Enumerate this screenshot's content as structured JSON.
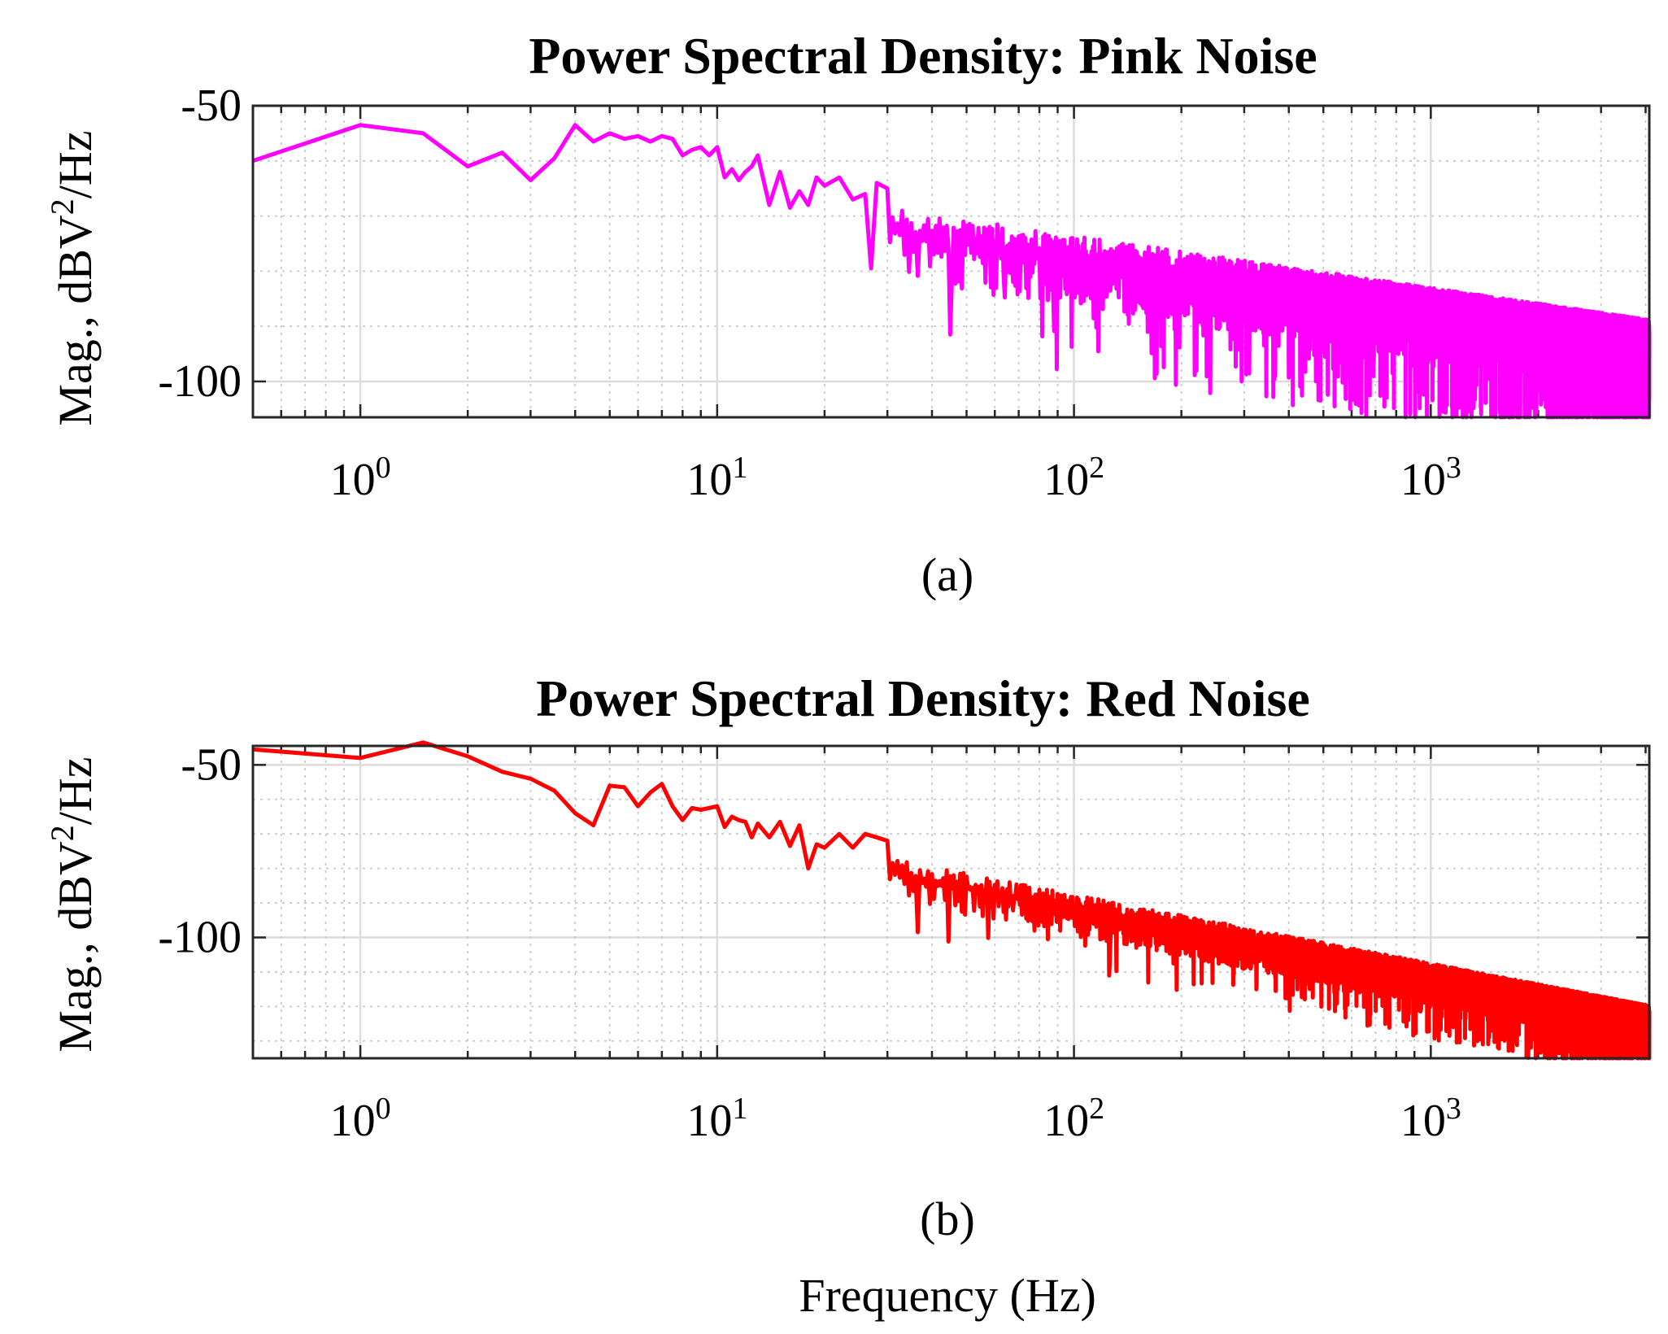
{
  "xlabel": "Frequency (Hz)",
  "chart_data": [
    {
      "type": "line",
      "title": "Power Spectral Density: Pink Noise",
      "subcaption": "(a)",
      "ylabel_prefix": "Mag., dBV",
      "ylabel_sup": "2",
      "ylabel_suffix": "/Hz",
      "xscale": "log",
      "xlim": [
        0.5,
        4096
      ],
      "ylim": [
        -106.5,
        -50
      ],
      "xticks": [
        1,
        10,
        100,
        1000
      ],
      "xtick_labels": [
        {
          "base": "10",
          "exp": "0"
        },
        {
          "base": "10",
          "exp": "1"
        },
        {
          "base": "10",
          "exp": "2"
        },
        {
          "base": "10",
          "exp": "3"
        }
      ],
      "yticks": [
        -50,
        -100
      ],
      "ytick_labels": [
        "-50",
        "-100"
      ],
      "ygrid": [
        -50,
        -60,
        -70,
        -80,
        -90,
        -100
      ],
      "grid": "major solid, minor dotted",
      "color": "#ff00ff",
      "trend": {
        "a": -58.5,
        "slope_db_per_decade": -9.5
      },
      "noise": {
        "up": 4,
        "down": 9,
        "spike_prob": 0.05,
        "spike_depth": 12,
        "min": -106.5,
        "seed": 7
      },
      "x": [
        0.5,
        1.0,
        1.5,
        2.0,
        2.5,
        3.0,
        3.5,
        4.0,
        4.5,
        5.0,
        5.5,
        6.0,
        6.5,
        7.0,
        7.5,
        8.0,
        8.5,
        9.0,
        9.5,
        10.0,
        10.5,
        11.0,
        11.5,
        12.0,
        12.5,
        13.0,
        14.0,
        15.0,
        16.0,
        17.0,
        18.0,
        19.0,
        20.0,
        22.0,
        24.0,
        26.0,
        27.0,
        28.0,
        30.0
      ],
      "values": [
        -60,
        -53.5,
        -55,
        -61,
        -58.5,
        -63.5,
        -59.5,
        -53.5,
        -56.5,
        -55,
        -56,
        -55.5,
        -56.5,
        -55.5,
        -56,
        -59,
        -58,
        -57.5,
        -59,
        -57.5,
        -63,
        -61.5,
        -63.5,
        -62,
        -61,
        -59,
        -68,
        -62,
        -68.5,
        -65.5,
        -68,
        -63,
        -64.5,
        -63,
        -67,
        -66,
        -79.5,
        -64,
        -65
      ]
    },
    {
      "type": "line",
      "title": "Power Spectral Density: Red Noise",
      "subcaption": "(b)",
      "ylabel_prefix": "Mag., dBV",
      "ylabel_sup": "2",
      "ylabel_suffix": "/Hz",
      "xscale": "log",
      "xlim": [
        0.5,
        4096
      ],
      "ylim": [
        -135,
        -44.5
      ],
      "xticks": [
        1,
        10,
        100,
        1000
      ],
      "xtick_labels": [
        {
          "base": "10",
          "exp": "0"
        },
        {
          "base": "10",
          "exp": "1"
        },
        {
          "base": "10",
          "exp": "2"
        },
        {
          "base": "10",
          "exp": "3"
        }
      ],
      "yticks": [
        -50,
        -100
      ],
      "ytick_labels": [
        "-50",
        "-100"
      ],
      "ygrid": [
        -50,
        -60,
        -70,
        -80,
        -90,
        -100,
        -110,
        -120,
        -130
      ],
      "grid": "major solid, minor dotted",
      "color": "#ff0000",
      "trend": {
        "a": -51.5,
        "slope_db_per_decade": -20
      },
      "noise": {
        "up": 4,
        "down": 8,
        "spike_prob": 0.04,
        "spike_depth": 10,
        "min": -135,
        "seed": 13
      },
      "x": [
        0.5,
        1.0,
        1.5,
        2.0,
        2.5,
        3.0,
        3.5,
        4.0,
        4.5,
        5.0,
        5.5,
        6.0,
        6.5,
        7.0,
        7.5,
        8.0,
        8.5,
        9.0,
        9.5,
        10.0,
        10.5,
        11.0,
        11.5,
        12.0,
        12.5,
        13.0,
        14.0,
        15.0,
        16.0,
        17.0,
        18.0,
        19.0,
        20.0,
        22.0,
        24.0,
        26.0,
        28.0,
        30.0
      ],
      "values": [
        -45.5,
        -48,
        -43.5,
        -47.5,
        -52,
        -54,
        -57.5,
        -64,
        -67.5,
        -56,
        -56.5,
        -62,
        -58,
        -55.5,
        -62,
        -66,
        -62.5,
        -63,
        -62.5,
        -62,
        -68,
        -65,
        -66,
        -66.5,
        -71,
        -67,
        -71,
        -66.5,
        -73.5,
        -67.5,
        -80,
        -73,
        -74,
        -70,
        -74,
        -70,
        -71,
        -72
      ]
    }
  ]
}
